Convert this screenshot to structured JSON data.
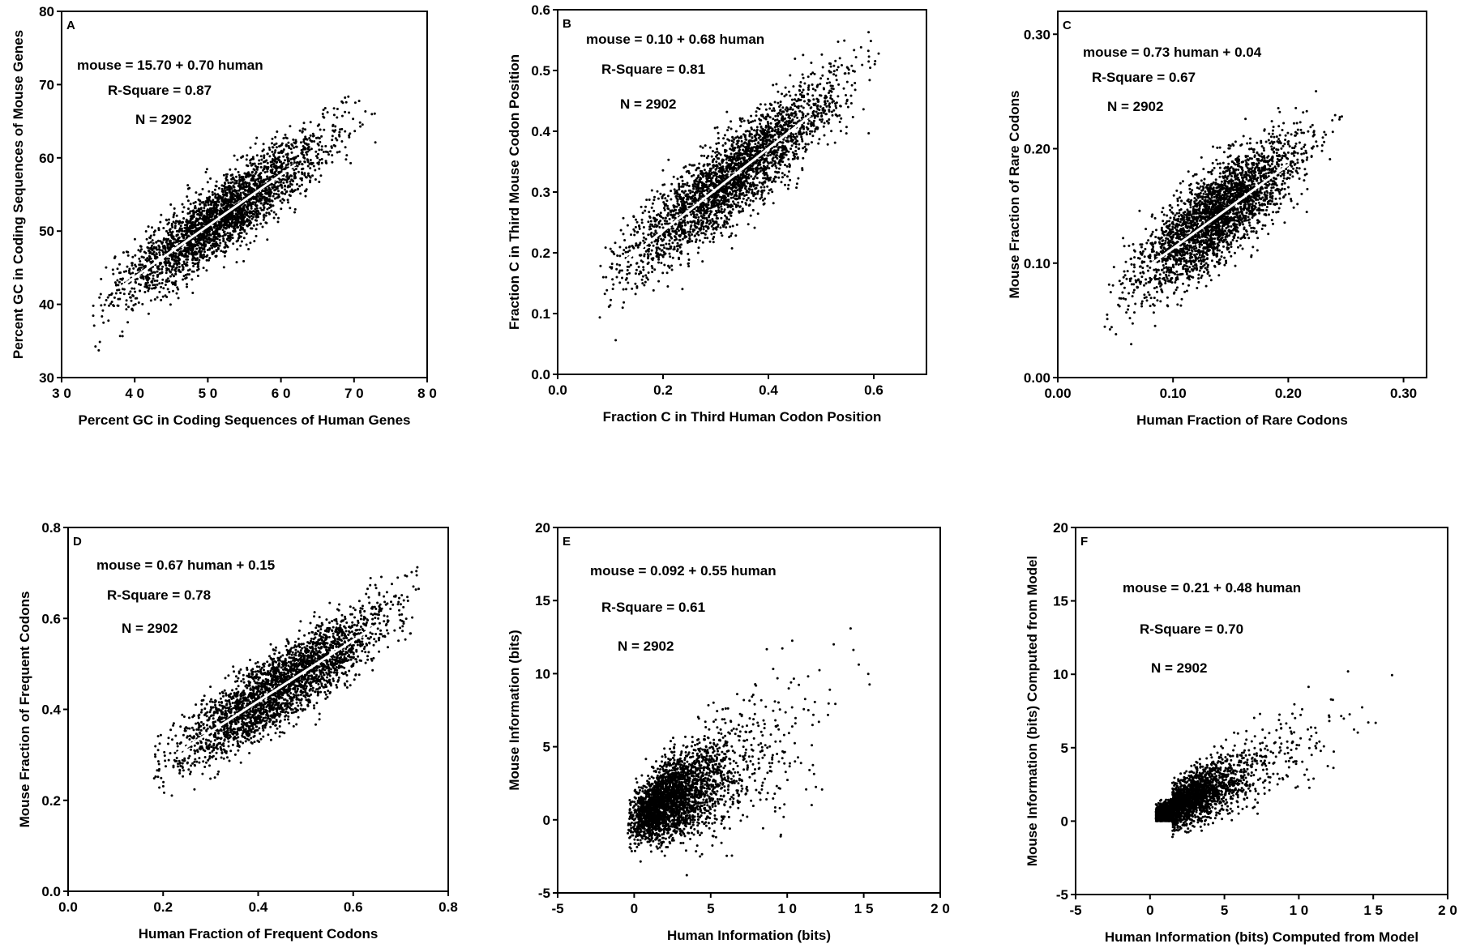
{
  "chart_data": [
    {
      "type": "scatter",
      "panel": "A",
      "xlabel": "Percent GC in Coding Sequences of Human Genes",
      "ylabel": "Percent GC in Coding Sequences of Mouse Genes",
      "xlim": [
        30,
        80
      ],
      "ylim": [
        30,
        80
      ],
      "xticks": [
        30,
        40,
        50,
        60,
        70,
        80
      ],
      "yticks": [
        30,
        40,
        50,
        60,
        70,
        80
      ],
      "xtick_labels": [
        "3 0",
        "4 0",
        "5 0",
        "6 0",
        "7 0",
        "8 0"
      ],
      "ytick_labels": [
        "30",
        "40",
        "50",
        "60",
        "70",
        "80"
      ],
      "annotations": [
        "mouse = 15.70 + 0.70 human",
        "R-Square = 0.87",
        "N = 2902"
      ],
      "fit": {
        "intercept": 15.7,
        "slope": 0.7,
        "x_range": [
          38,
          62
        ]
      },
      "n": 2902,
      "cloud": {
        "x_center": 52,
        "x_sd": 7,
        "x_min": 34,
        "x_max": 76,
        "resid_sd": 2.4
      },
      "grid": false
    },
    {
      "type": "scatter",
      "panel": "B",
      "xlabel": "Fraction C in Third Human Codon Position",
      "ylabel": "Fraction C in Third Mouse Codon Position",
      "xlim": [
        0.0,
        0.7
      ],
      "ylim": [
        0.0,
        0.6
      ],
      "xticks": [
        0.0,
        0.2,
        0.4,
        0.6
      ],
      "yticks": [
        0.0,
        0.1,
        0.2,
        0.3,
        0.4,
        0.5,
        0.6
      ],
      "xtick_labels": [
        "0.0",
        "0.2",
        "0.4",
        "0.6"
      ],
      "ytick_labels": [
        "0.0",
        "0.1",
        "0.2",
        "0.3",
        "0.4",
        "0.5",
        "0.6"
      ],
      "annotations": [
        "mouse = 0.10 + 0.68 human",
        "R-Square = 0.81",
        "N = 2902"
      ],
      "fit": {
        "intercept": 0.1,
        "slope": 0.68,
        "x_range": [
          0.13,
          0.48
        ]
      },
      "n": 2902,
      "cloud": {
        "x_center": 0.33,
        "x_sd": 0.1,
        "x_min": 0.08,
        "x_max": 0.62,
        "resid_sd": 0.035
      },
      "grid": false
    },
    {
      "type": "scatter",
      "panel": "C",
      "xlabel": "Human Fraction of Rare Codons",
      "ylabel": "Mouse Fraction of Rare Codons",
      "xlim": [
        0.0,
        0.32
      ],
      "ylim": [
        0.0,
        0.32
      ],
      "xticks": [
        0.0,
        0.1,
        0.2,
        0.3
      ],
      "yticks": [
        0.0,
        0.1,
        0.2,
        0.3
      ],
      "xtick_labels": [
        "0.00",
        "0.10",
        "0.20",
        "0.30"
      ],
      "ytick_labels": [
        "0.00",
        "0.10",
        "0.20",
        "0.30"
      ],
      "annotations": [
        "mouse = 0.73 human + 0.04",
        "R-Square = 0.67",
        "N = 2902"
      ],
      "fit": {
        "intercept": 0.04,
        "slope": 0.73,
        "x_range": [
          0.08,
          0.2
        ]
      },
      "n": 2902,
      "cloud": {
        "x_center": 0.14,
        "x_sd": 0.035,
        "x_min": 0.04,
        "x_max": 0.25,
        "resid_sd": 0.02
      },
      "grid": false
    },
    {
      "type": "scatter",
      "panel": "D",
      "xlabel": "Human Fraction of Frequent Codons",
      "ylabel": "Mouse Fraction of Frequent Codons",
      "xlim": [
        0.0,
        0.8
      ],
      "ylim": [
        0.0,
        0.8
      ],
      "xticks": [
        0.0,
        0.2,
        0.4,
        0.6,
        0.8
      ],
      "yticks": [
        0.0,
        0.2,
        0.4,
        0.6,
        0.8
      ],
      "xtick_labels": [
        "0.0",
        "0.2",
        "0.4",
        "0.6",
        "0.8"
      ],
      "ytick_labels": [
        "0.0",
        "0.2",
        "0.4",
        "0.6",
        "0.8"
      ],
      "annotations": [
        "mouse = 0.67 human + 0.15",
        "R-Square = 0.78",
        "N = 2902"
      ],
      "fit": {
        "intercept": 0.15,
        "slope": 0.67,
        "x_range": [
          0.23,
          0.65
        ]
      },
      "n": 2902,
      "cloud": {
        "x_center": 0.45,
        "x_sd": 0.11,
        "x_min": 0.18,
        "x_max": 0.74,
        "resid_sd": 0.04
      },
      "grid": false
    },
    {
      "type": "scatter",
      "panel": "E",
      "xlabel": "Human Information (bits)",
      "ylabel": "Mouse Information (bits)",
      "xlim": [
        -5,
        20
      ],
      "ylim": [
        -5,
        20
      ],
      "xticks": [
        -5,
        0,
        5,
        10,
        15,
        20
      ],
      "yticks": [
        -5,
        0,
        5,
        10,
        15,
        20
      ],
      "xtick_labels": [
        "-5",
        "0",
        "5",
        "1 0",
        "1 5",
        "2 0"
      ],
      "ytick_labels": [
        "-5",
        "0",
        "5",
        "10",
        "15",
        "20"
      ],
      "annotations": [
        "mouse = 0.092 + 0.55 human",
        "R-Square = 0.61",
        "N = 2902"
      ],
      "fit": {
        "intercept": 0.092,
        "slope": 0.55,
        "x_range": [
          0,
          6
        ]
      },
      "n": 2902,
      "cloud": {
        "x_center": 1.5,
        "x_sd": 2.8,
        "x_min": -2.5,
        "x_max": 15.5,
        "resid_sd": 1.5
      },
      "grid": false
    },
    {
      "type": "scatter",
      "panel": "F",
      "xlabel": "Human Information (bits) Computed from Model",
      "ylabel": "Mouse Information (bits) Computed from Model",
      "xlim": [
        -5,
        20
      ],
      "ylim": [
        -5,
        20
      ],
      "xticks": [
        -5,
        0,
        5,
        10,
        15,
        20
      ],
      "yticks": [
        -5,
        0,
        5,
        10,
        15,
        20
      ],
      "xtick_labels": [
        "-5",
        "0",
        "5",
        "1 0",
        "1 5",
        "2 0"
      ],
      "ytick_labels": [
        "-5",
        "0",
        "5",
        "10",
        "15",
        "20"
      ],
      "annotations": [
        "mouse = 0.21 + 0.48 human",
        "R-Square = 0.70",
        "N = 2902"
      ],
      "fit": {
        "intercept": 0.21,
        "slope": 0.48,
        "x_range": [
          0,
          10
        ]
      },
      "n": 2902,
      "cloud": {
        "x_center": 1.2,
        "x_sd": 2.6,
        "x_min": 0,
        "x_max": 20,
        "resid_sd": 0.9
      },
      "grid": false
    }
  ]
}
